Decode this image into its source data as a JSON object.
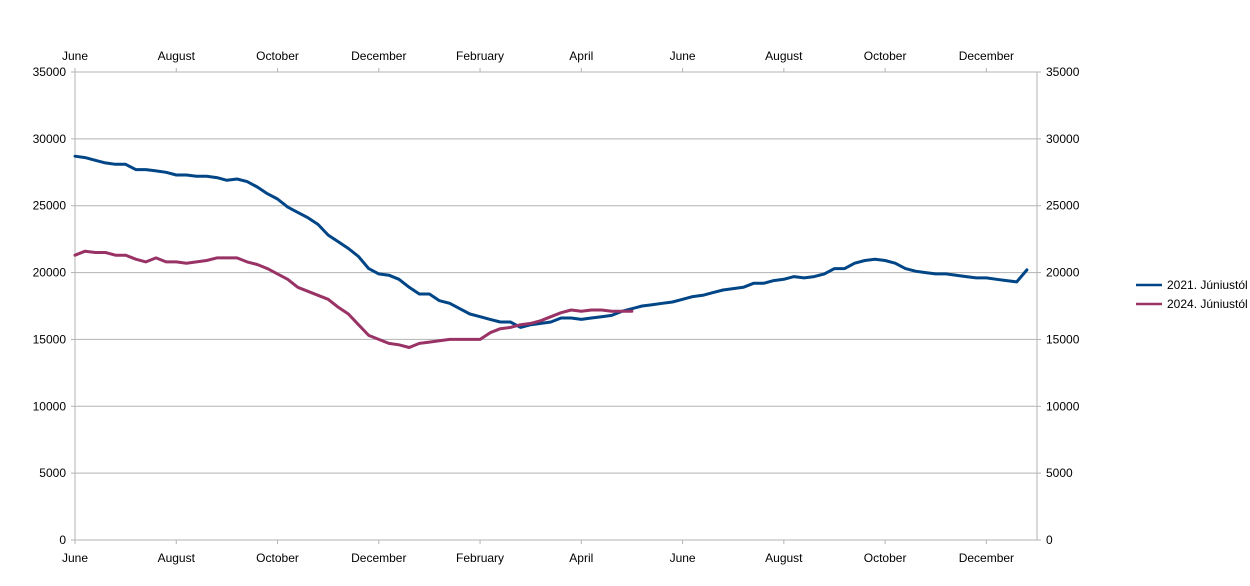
{
  "chart_data": {
    "type": "line",
    "title": "",
    "xlabel": "",
    "ylabel": "",
    "ylim": [
      0,
      35000
    ],
    "yticks": [
      0,
      5000,
      10000,
      15000,
      20000,
      25000,
      30000,
      35000
    ],
    "xlim": [
      0,
      19
    ],
    "x_tick_labels": [
      "June",
      "August",
      "October",
      "December",
      "February",
      "April",
      "June",
      "August",
      "October",
      "December"
    ],
    "x_tick_positions": [
      0,
      2,
      4,
      6,
      8,
      10,
      12,
      14,
      16,
      18
    ],
    "grid": "horizontal",
    "legend_position": "right",
    "series": [
      {
        "name": "2021. Júniustól",
        "color": "#004586",
        "x": [
          0,
          0.2,
          0.4,
          0.6,
          0.8,
          1.0,
          1.2,
          1.4,
          1.6,
          1.8,
          2.0,
          2.2,
          2.4,
          2.6,
          2.8,
          3.0,
          3.2,
          3.4,
          3.6,
          3.8,
          4.0,
          4.2,
          4.4,
          4.6,
          4.8,
          5.0,
          5.2,
          5.4,
          5.6,
          5.8,
          6.0,
          6.2,
          6.4,
          6.6,
          6.8,
          7.0,
          7.2,
          7.4,
          7.6,
          7.8,
          8.0,
          8.2,
          8.4,
          8.6,
          8.8,
          9.0,
          9.2,
          9.4,
          9.6,
          9.8,
          10.0,
          10.2,
          10.4,
          10.6,
          10.8,
          11.0,
          11.2,
          11.4,
          11.6,
          11.8,
          12.0,
          12.2,
          12.4,
          12.6,
          12.8,
          13.0,
          13.2,
          13.4,
          13.6,
          13.8,
          14.0,
          14.2,
          14.4,
          14.6,
          14.8,
          15.0,
          15.2,
          15.4,
          15.6,
          15.8,
          16.0,
          16.2,
          16.4,
          16.6,
          16.8,
          17.0,
          17.2,
          17.4,
          17.6,
          17.8,
          18.0,
          18.2,
          18.4,
          18.6,
          18.8
        ],
        "y": [
          28700,
          28600,
          28400,
          28200,
          28100,
          28100,
          27700,
          27700,
          27600,
          27500,
          27300,
          27300,
          27200,
          27200,
          27100,
          26900,
          27000,
          26800,
          26400,
          25900,
          25500,
          24900,
          24500,
          24100,
          23600,
          22800,
          22300,
          21800,
          21200,
          20300,
          19900,
          19800,
          19500,
          18900,
          18400,
          18400,
          17900,
          17700,
          17300,
          16900,
          16700,
          16500,
          16300,
          16300,
          15900,
          16100,
          16200,
          16300,
          16600,
          16600,
          16500,
          16600,
          16700,
          16800,
          17100,
          17300,
          17500,
          17600,
          17700,
          17800,
          18000,
          18200,
          18300,
          18500,
          18700,
          18800,
          18900,
          19200,
          19200,
          19400,
          19500,
          19700,
          19600,
          19700,
          19900,
          20300,
          20300,
          20700,
          20900,
          21000,
          20900,
          20700,
          20300,
          20100,
          20000,
          19900,
          19900,
          19800,
          19700,
          19600,
          19600,
          19500,
          19400,
          19300,
          20200
        ]
      },
      {
        "name": "2024. Júniustól",
        "color": "#993366",
        "x": [
          0,
          0.2,
          0.4,
          0.6,
          0.8,
          1.0,
          1.2,
          1.4,
          1.6,
          1.8,
          2.0,
          2.2,
          2.4,
          2.6,
          2.8,
          3.0,
          3.2,
          3.4,
          3.6,
          3.8,
          4.0,
          4.2,
          4.4,
          4.6,
          4.8,
          5.0,
          5.2,
          5.4,
          5.6,
          5.8,
          6.0,
          6.2,
          6.4,
          6.6,
          6.8,
          7.0,
          7.2,
          7.4,
          7.6,
          7.8,
          8.0,
          8.2,
          8.4,
          8.6,
          8.8,
          9.0,
          9.2,
          9.4,
          9.6,
          9.8,
          10.0,
          10.2,
          10.4,
          10.6,
          10.8,
          11.0
        ],
        "y": [
          21300,
          21600,
          21500,
          21500,
          21300,
          21300,
          21000,
          20800,
          21100,
          20800,
          20800,
          20700,
          20800,
          20900,
          21100,
          21100,
          21100,
          20800,
          20600,
          20300,
          19900,
          19500,
          18900,
          18600,
          18300,
          18000,
          17400,
          16900,
          16100,
          15300,
          15000,
          14700,
          14600,
          14400,
          14700,
          14800,
          14900,
          15000,
          15000,
          15000,
          15000,
          15500,
          15800,
          15900,
          16100,
          16200,
          16400,
          16700,
          17000,
          17200,
          17100,
          17200,
          17200,
          17100,
          17100,
          17100
        ]
      }
    ]
  }
}
